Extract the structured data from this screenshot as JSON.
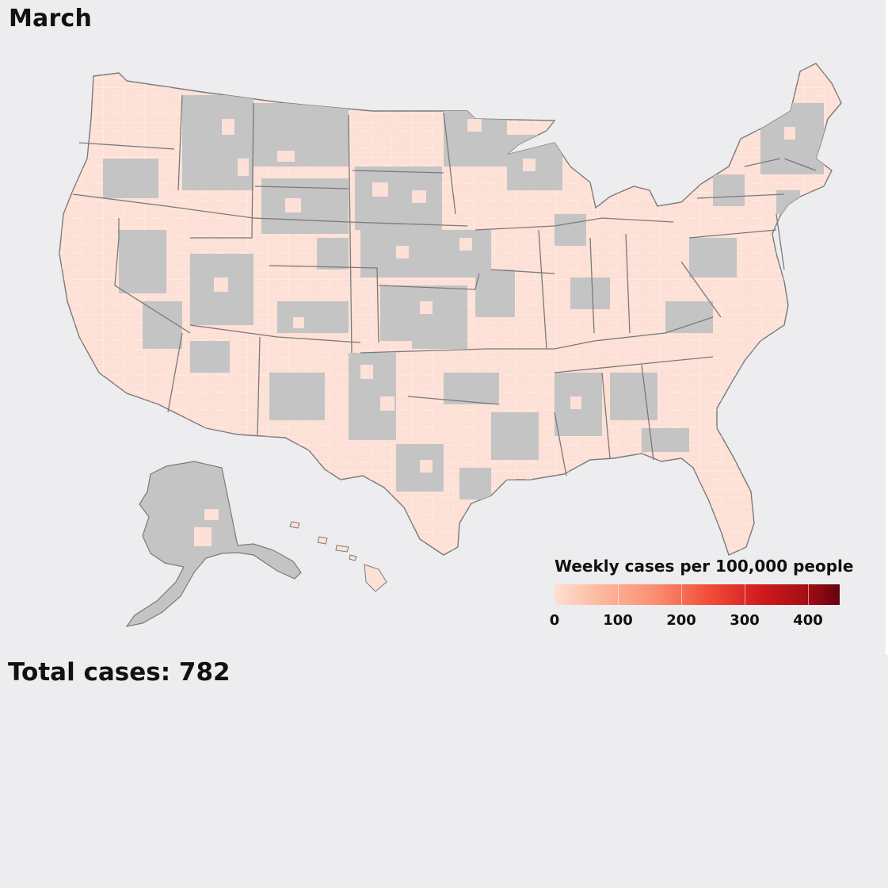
{
  "map": {
    "period": "March",
    "total_cases_text": "Total cases: 782",
    "colors": {
      "background": "#ededef",
      "no_data": "#c4c4c4",
      "low_cases": "#fde0d6",
      "boundary": "#7a7a7a",
      "county_line": "#ffffff"
    },
    "legend": {
      "title": "Weekly cases per 100,000 people",
      "ticks": [
        "0",
        "100",
        "200",
        "300",
        "400"
      ],
      "scale_max": 450,
      "color_stops": [
        "#fee0d2",
        "#fcbba1",
        "#fb8f72",
        "#f14b36",
        "#d11b1f",
        "#a50f15",
        "#67000d"
      ]
    }
  }
}
